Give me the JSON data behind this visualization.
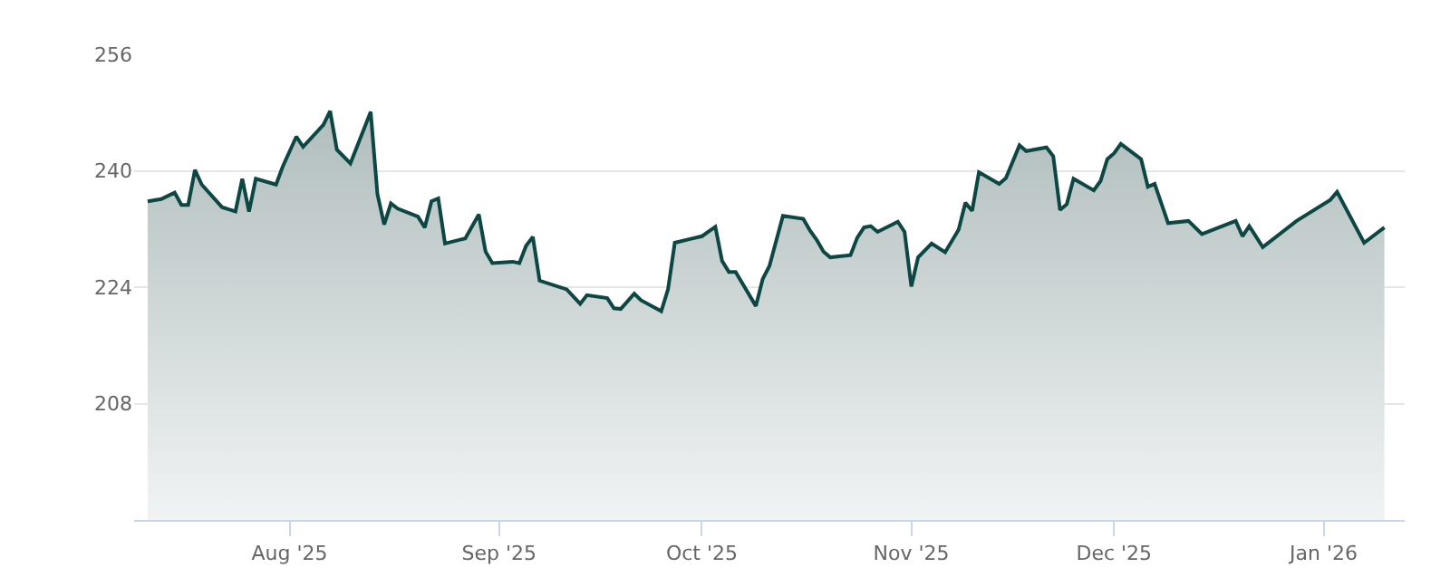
{
  "chart_data": {
    "type": "area",
    "x": [
      "2025-07-11",
      "2025-07-13",
      "2025-07-15",
      "2025-07-16",
      "2025-07-17",
      "2025-07-18",
      "2025-07-19",
      "2025-07-22",
      "2025-07-24",
      "2025-07-25",
      "2025-07-26",
      "2025-07-27",
      "2025-07-30",
      "2025-07-31",
      "2025-08-02",
      "2025-08-03",
      "2025-08-06",
      "2025-08-07",
      "2025-08-08",
      "2025-08-10",
      "2025-08-13",
      "2025-08-14",
      "2025-08-15",
      "2025-08-16",
      "2025-08-17",
      "2025-08-20",
      "2025-08-21",
      "2025-08-22",
      "2025-08-23",
      "2025-08-24",
      "2025-08-27",
      "2025-08-29",
      "2025-08-30",
      "2025-08-31",
      "2025-09-03",
      "2025-09-04",
      "2025-09-05",
      "2025-09-06",
      "2025-09-07",
      "2025-09-11",
      "2025-09-13",
      "2025-09-14",
      "2025-09-17",
      "2025-09-18",
      "2025-09-19",
      "2025-09-21",
      "2025-09-22",
      "2025-09-25",
      "2025-09-26",
      "2025-09-27",
      "2025-10-01",
      "2025-10-03",
      "2025-10-04",
      "2025-10-05",
      "2025-10-06",
      "2025-10-09",
      "2025-10-10",
      "2025-10-11",
      "2025-10-13",
      "2025-10-16",
      "2025-10-17",
      "2025-10-18",
      "2025-10-19",
      "2025-10-20",
      "2025-10-23",
      "2025-10-24",
      "2025-10-25",
      "2025-10-26",
      "2025-10-27",
      "2025-10-30",
      "2025-10-31",
      "2025-11-01",
      "2025-11-02",
      "2025-11-04",
      "2025-11-06",
      "2025-11-08",
      "2025-11-09",
      "2025-11-10",
      "2025-11-11",
      "2025-11-14",
      "2025-11-15",
      "2025-11-17",
      "2025-11-18",
      "2025-11-21",
      "2025-11-22",
      "2025-11-23",
      "2025-11-24",
      "2025-11-25",
      "2025-11-28",
      "2025-11-29",
      "2025-11-30",
      "2025-12-01",
      "2025-12-02",
      "2025-12-05",
      "2025-12-06",
      "2025-12-07",
      "2025-12-09",
      "2025-12-12",
      "2025-12-14",
      "2025-12-19",
      "2025-12-20",
      "2025-12-21",
      "2025-12-23",
      "2025-12-28",
      "2026-01-02",
      "2026-01-03",
      "2026-01-07",
      "2026-01-10"
    ],
    "series": [
      {
        "color": "#0d4744",
        "values": [
          235.8,
          236.1,
          237.0,
          235.3,
          235.3,
          240.1,
          238.1,
          235.0,
          234.4,
          238.9,
          234.4,
          238.9,
          238.1,
          240.6,
          244.7,
          243.3,
          246.3,
          248.2,
          242.9,
          241.0,
          248.1,
          236.8,
          232.6,
          235.5,
          234.8,
          233.7,
          232.2,
          235.8,
          236.2,
          230.0,
          230.7,
          234.0,
          228.9,
          227.3,
          227.5,
          227.3,
          229.7,
          230.9,
          224.9,
          223.7,
          221.7,
          222.9,
          222.5,
          221.1,
          221.0,
          223.1,
          222.2,
          220.7,
          223.7,
          230.1,
          231.0,
          232.3,
          227.6,
          226.1,
          226.1,
          221.4,
          225.1,
          226.9,
          233.8,
          233.4,
          231.8,
          230.5,
          228.9,
          228.1,
          228.4,
          230.8,
          232.2,
          232.4,
          231.6,
          233.0,
          231.6,
          224.1,
          228.1,
          230.0,
          228.8,
          231.9,
          235.6,
          234.5,
          239.8,
          238.2,
          239.0,
          243.5,
          242.7,
          243.2,
          242.0,
          234.6,
          235.4,
          238.9,
          237.3,
          238.6,
          241.6,
          242.4,
          243.7,
          241.6,
          237.8,
          238.2,
          232.8,
          233.1,
          231.3,
          233.1,
          231.0,
          232.4,
          229.5,
          233.1,
          236.0,
          237.1,
          230.1,
          232.2
        ]
      }
    ],
    "xlim": [
      "2025-07-09",
      "2026-01-13"
    ],
    "xticks": [
      {
        "value": "2025-08-01",
        "label": "Aug '25"
      },
      {
        "value": "2025-09-01",
        "label": "Sep '25"
      },
      {
        "value": "2025-10-01",
        "label": "Oct '25"
      },
      {
        "value": "2025-11-01",
        "label": "Nov '25"
      },
      {
        "value": "2025-12-01",
        "label": "Dec '25"
      },
      {
        "value": "2026-01-01",
        "label": "Jan '26"
      }
    ],
    "ylim": [
      192,
      256
    ],
    "yticks": [
      208,
      224,
      240,
      256
    ],
    "grid": "y"
  }
}
